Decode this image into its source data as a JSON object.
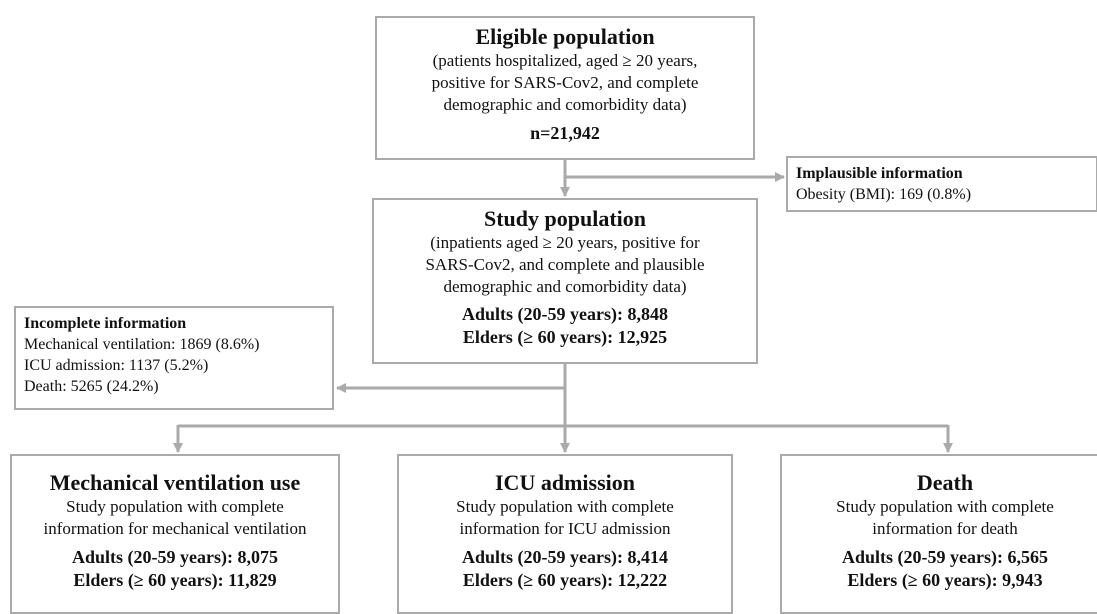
{
  "eligible": {
    "title": "Eligible population",
    "lines": [
      "(patients hospitalized, aged ≥ 20 years,",
      "positive for SARS-Cov2, and complete",
      "demographic and comorbidity data)"
    ],
    "n": "n=21,942"
  },
  "implausible": {
    "title": "Implausible information",
    "lines": [
      "Obesity (BMI): 169 (0.8%)"
    ]
  },
  "study": {
    "title": "Study population",
    "lines": [
      "(inpatients aged ≥ 20 years, positive for",
      "SARS-Cov2, and complete and plausible",
      "demographic and comorbidity data)"
    ],
    "counts": [
      "Adults (20-59 years): 8,848",
      "Elders (≥ 60 years): 12,925"
    ]
  },
  "incomplete": {
    "title": "Incomplete information",
    "lines": [
      "Mechanical ventilation: 1869 (8.6%)",
      "ICU admission: 1137 (5.2%)",
      "Death: 5265 (24.2%)"
    ]
  },
  "outcomes": [
    {
      "title": "Mechanical ventilation use",
      "lines": [
        "Study population with complete",
        "information for mechanical ventilation"
      ],
      "counts": [
        "Adults (20-59 years): 8,075",
        "Elders (≥ 60 years): 11,829"
      ]
    },
    {
      "title": "ICU admission",
      "lines": [
        "Study population with complete",
        "information for ICU admission"
      ],
      "counts": [
        "Adults (20-59 years): 8,414",
        "Elders (≥ 60 years): 12,222"
      ]
    },
    {
      "title": "Death",
      "lines": [
        "Study population with complete",
        "information for death"
      ],
      "counts": [
        "Adults (20-59 years): 6,565",
        "Elders (≥ 60 years): 9,943"
      ]
    }
  ]
}
